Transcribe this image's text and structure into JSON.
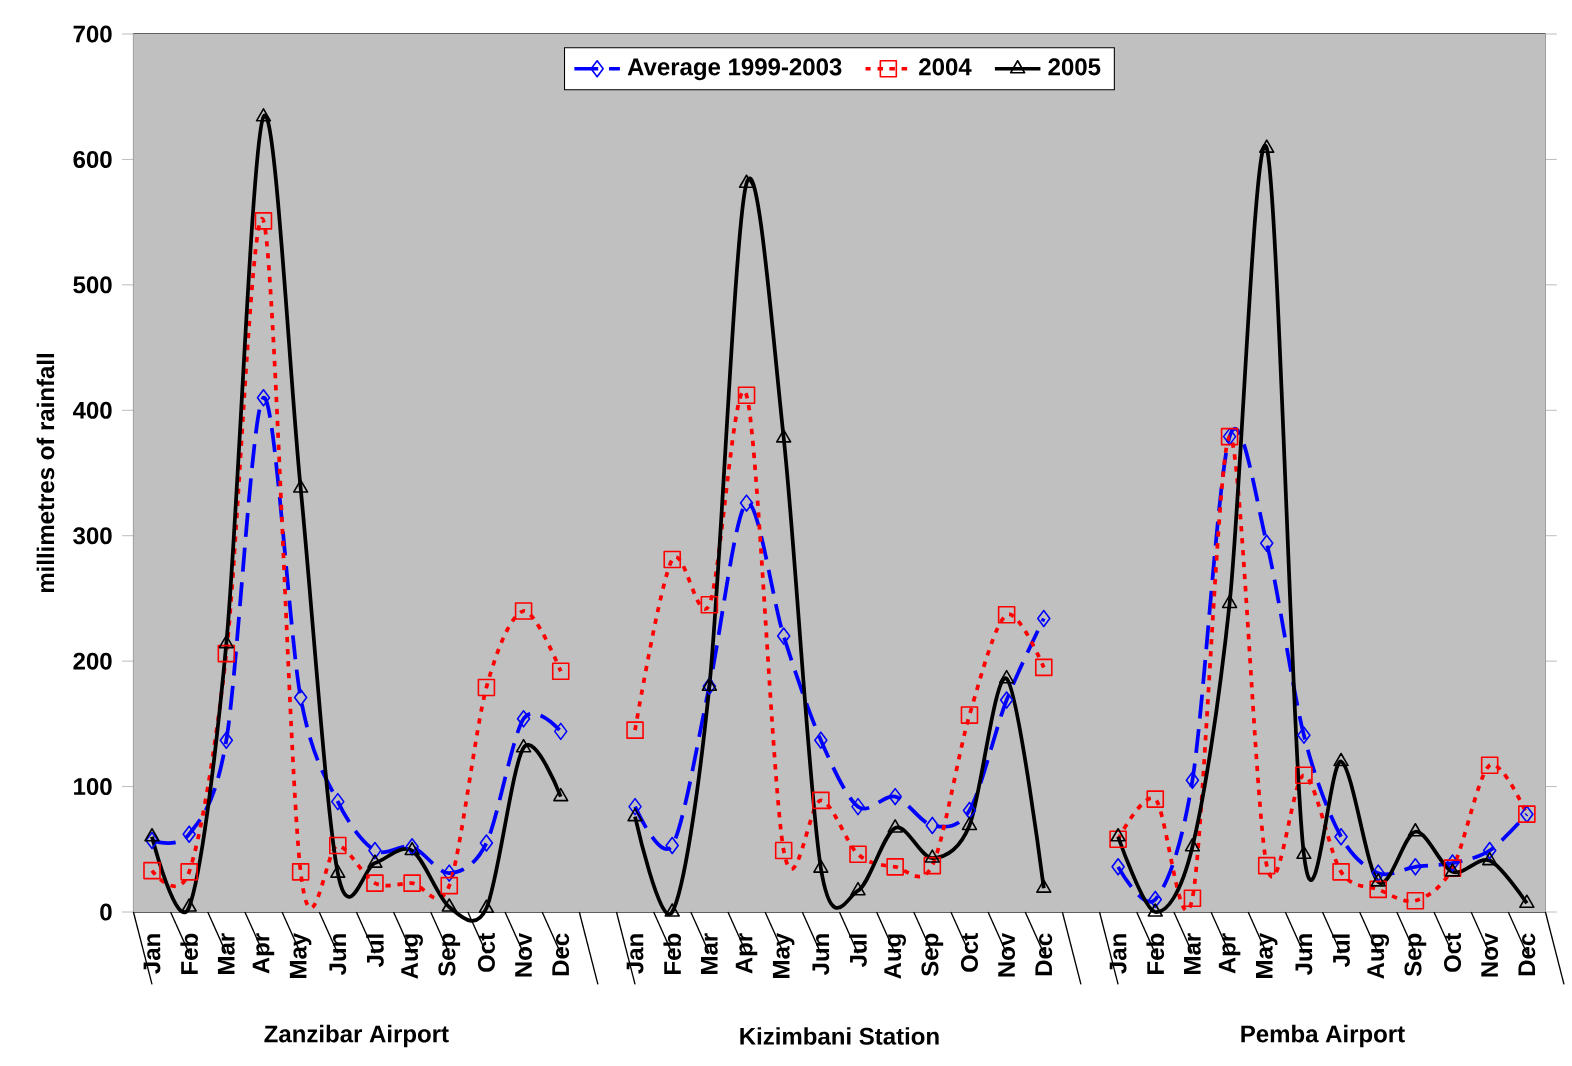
{
  "chart_data": {
    "type": "line",
    "ylabel": "millimetres of rainfall",
    "categories": [
      "Jan",
      "Feb",
      "Mar",
      "Apr",
      "May",
      "Jun",
      "Jul",
      "Aug",
      "Sep",
      "Oct",
      "Nov",
      "Dec",
      null,
      "Jan",
      "Feb",
      "Mar",
      "Apr",
      "May",
      "Jun",
      "Jul",
      "Aug",
      "Sep",
      "Oct",
      "Nov",
      "Dec",
      null,
      "Jan",
      "Feb",
      "Mar",
      "Apr",
      "May",
      "Jun",
      "Jul",
      "Aug",
      "Sep",
      "Oct",
      "Nov",
      "Dec"
    ],
    "series": [
      {
        "name": "Average 1999-2003",
        "color": "#0000ff",
        "marker": "diamond",
        "line_style": "dashed",
        "values": [
          57,
          62,
          137,
          410,
          171,
          88,
          49,
          52,
          31,
          55,
          154,
          144,
          null,
          84,
          53,
          180,
          326,
          220,
          137,
          84,
          92,
          69,
          81,
          169,
          234,
          null,
          36,
          10,
          105,
          379,
          294,
          141,
          60,
          31,
          36,
          39,
          49,
          78
        ]
      },
      {
        "name": "2004",
        "color": "#ff0000",
        "marker": "square",
        "line_style": "dotted",
        "values": [
          33,
          32,
          206,
          551,
          32,
          53,
          23,
          23,
          21,
          179,
          240,
          192,
          null,
          145,
          281,
          245,
          412,
          49,
          89,
          46,
          36,
          37,
          157,
          237,
          195,
          null,
          58,
          90,
          11,
          379,
          37,
          109,
          32,
          18,
          9,
          35,
          117,
          78
        ]
      },
      {
        "name": "2005",
        "color": "#000000",
        "marker": "triangle",
        "line_style": "solid",
        "values": [
          60,
          4,
          214,
          634,
          338,
          31,
          39,
          49,
          4,
          3,
          131,
          92,
          null,
          76,
          0,
          180,
          581,
          378,
          35,
          17,
          67,
          43,
          69,
          186,
          19,
          null,
          60,
          0,
          52,
          246,
          609,
          46,
          120,
          24,
          64,
          32,
          41,
          7
        ]
      }
    ],
    "annotations": [
      "Zanzibar Airport",
      "Kizimbani Station",
      "Pemba Airport"
    ],
    "ylim": [
      0,
      700
    ],
    "yticks": [
      0,
      100,
      200,
      300,
      400,
      500,
      600,
      700
    ],
    "grid": "y",
    "legend": "top"
  }
}
